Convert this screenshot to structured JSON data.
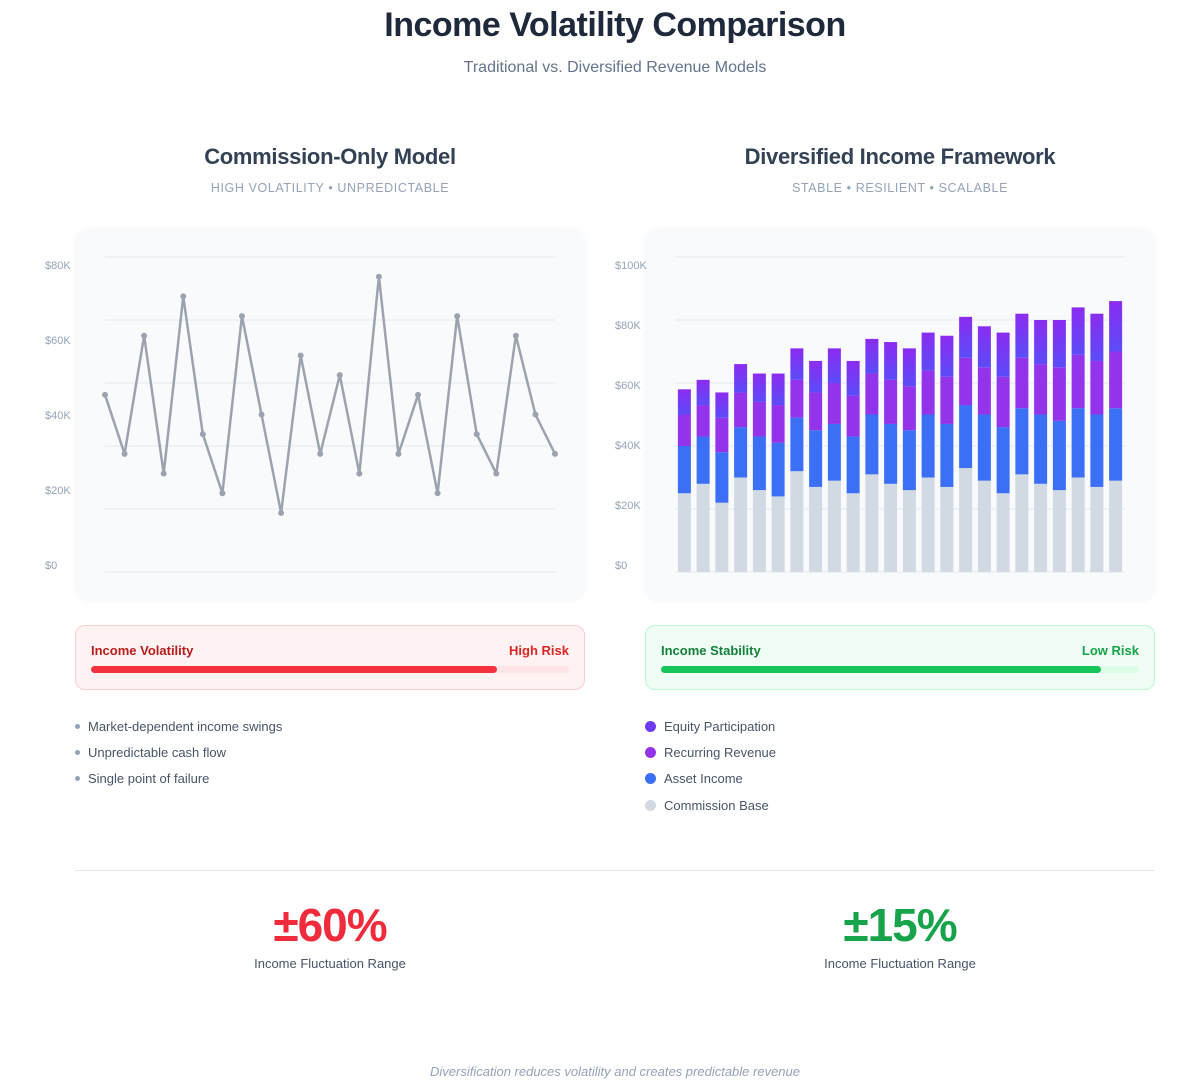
{
  "header": {
    "title": "Income Volatility Comparison",
    "subtitle": "Traditional vs. Diversified Revenue Models"
  },
  "left": {
    "title": "Commission-Only Model",
    "tagline": "HIGH VOLATILITY • UNPREDICTABLE",
    "risk": {
      "label": "Income Volatility",
      "value": "High Risk",
      "level_percent": 85,
      "color": "#f5303f"
    },
    "bullets": [
      "Market-dependent income swings",
      "Unpredictable cash flow",
      "Single point of failure"
    ],
    "stat": {
      "value": "±60%",
      "label": "Income Fluctuation Range",
      "color": "#ef2b3c"
    }
  },
  "right": {
    "title": "Diversified Income Framework",
    "tagline": "STABLE • RESILIENT • SCALABLE",
    "risk": {
      "label": "Income Stability",
      "value": "Low Risk",
      "level_percent": 92,
      "color": "#16c45a"
    },
    "legend": [
      {
        "label": "Equity Participation",
        "color": "#6d3bf5"
      },
      {
        "label": "Recurring Revenue",
        "color": "#9333ea"
      },
      {
        "label": "Asset Income",
        "color": "#3b6ff6"
      },
      {
        "label": "Commission Base",
        "color": "#d1d9e2"
      }
    ],
    "stat": {
      "value": "±15%",
      "label": "Income Fluctuation Range",
      "color": "#16a34a"
    }
  },
  "footer": "Diversification reduces volatility and creates predictable revenue",
  "chart_data": [
    {
      "type": "line",
      "ylim": [
        0,
        80000
      ],
      "y_tick_labels": [
        "$80K",
        "$60K",
        "$40K",
        "$20K",
        "$0"
      ],
      "grid": true,
      "color": "#9ca3af",
      "values": [
        45000,
        30000,
        60000,
        25000,
        70000,
        35000,
        20000,
        65000,
        40000,
        15000,
        55000,
        30000,
        50000,
        25000,
        75000,
        30000,
        45000,
        20000,
        65000,
        35000,
        25000,
        60000,
        40000,
        30000
      ]
    },
    {
      "type": "bar",
      "stacked": true,
      "ylim": [
        0,
        100000
      ],
      "y_tick_labels": [
        "$100K",
        "$80K",
        "$60K",
        "$40K",
        "$20K",
        "$0"
      ],
      "grid": true,
      "legend": "below",
      "series": [
        {
          "name": "Commission Base",
          "color": "#d1d9e2",
          "values": [
            25000,
            28000,
            22000,
            30000,
            26000,
            24000,
            32000,
            27000,
            29000,
            25000,
            31000,
            28000,
            26000,
            30000,
            27000,
            33000,
            29000,
            25000,
            31000,
            28000,
            26000,
            30000,
            27000,
            29000
          ]
        },
        {
          "name": "Asset Income",
          "color": "#3b6ff6",
          "values": [
            15000,
            15000,
            16000,
            16000,
            17000,
            17000,
            17000,
            18000,
            18000,
            18000,
            19000,
            19000,
            19000,
            20000,
            20000,
            20000,
            21000,
            21000,
            21000,
            22000,
            22000,
            22000,
            23000,
            23000
          ]
        },
        {
          "name": "Recurring Revenue",
          "color": "#9333ea",
          "values": [
            10000,
            10000,
            11000,
            11000,
            11000,
            12000,
            12000,
            12000,
            13000,
            13000,
            13000,
            14000,
            14000,
            14000,
            15000,
            15000,
            15000,
            16000,
            16000,
            16000,
            17000,
            17000,
            17000,
            18000
          ]
        },
        {
          "name": "Equity Participation",
          "color": "#6d3bf5",
          "values": [
            8000,
            8000,
            8000,
            9000,
            9000,
            10000,
            10000,
            10000,
            11000,
            11000,
            11000,
            12000,
            12000,
            12000,
            13000,
            13000,
            13000,
            14000,
            14000,
            14000,
            15000,
            15000,
            15000,
            16000
          ]
        }
      ]
    }
  ]
}
